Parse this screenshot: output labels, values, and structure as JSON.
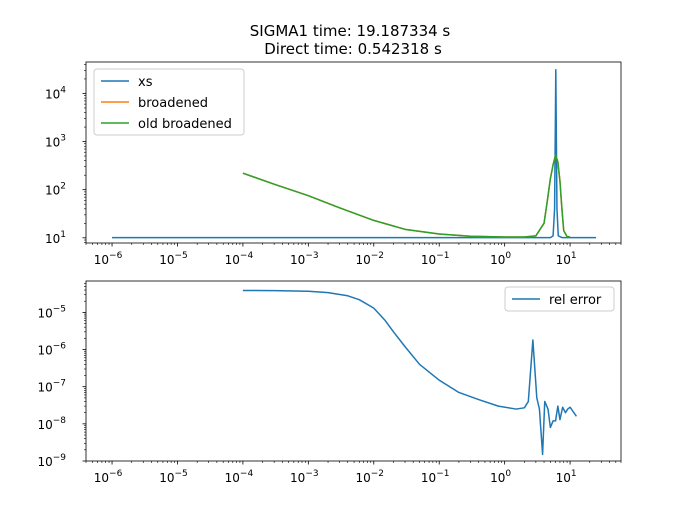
{
  "figure": {
    "title_line1": "SIGMA1 time: 19.187334 s",
    "title_line2": "Direct time: 0.542318 s"
  },
  "chart_data": [
    {
      "type": "line",
      "title": "SIGMA1 time: 19.187334 s\nDirect time: 0.542318 s",
      "xscale": "log",
      "yscale": "log",
      "xlim": [
        4e-07,
        60
      ],
      "ylim": [
        7.8,
        45000
      ],
      "xticks": [
        {
          "value": 1e-06,
          "base": "10",
          "exp": "−6"
        },
        {
          "value": 1e-05,
          "base": "10",
          "exp": "−5"
        },
        {
          "value": 0.0001,
          "base": "10",
          "exp": "−4"
        },
        {
          "value": 0.001,
          "base": "10",
          "exp": "−3"
        },
        {
          "value": 0.01,
          "base": "10",
          "exp": "−2"
        },
        {
          "value": 0.1,
          "base": "10",
          "exp": "−1"
        },
        {
          "value": 1,
          "base": "10",
          "exp": "0"
        },
        {
          "value": 10,
          "base": "10",
          "exp": "1"
        }
      ],
      "yticks": [
        {
          "value": 10,
          "base": "10",
          "exp": "1"
        },
        {
          "value": 100,
          "base": "10",
          "exp": "2"
        },
        {
          "value": 1000,
          "base": "10",
          "exp": "3"
        },
        {
          "value": 10000,
          "base": "10",
          "exp": "4"
        }
      ],
      "legend_position": "upper-left",
      "series": [
        {
          "name": "xs",
          "color": "#1f77b4",
          "points": [
            [
              1e-06,
              10.1
            ],
            [
              5.0,
              10.1
            ],
            [
              5.5,
              11
            ],
            [
              5.8,
              40
            ],
            [
              5.95,
              2000
            ],
            [
              6.05,
              31000
            ],
            [
              6.15,
              2000
            ],
            [
              6.3,
              40
            ],
            [
              6.6,
              11
            ],
            [
              7.5,
              10.1
            ],
            [
              25,
              10.1
            ]
          ]
        },
        {
          "name": "broadened",
          "color": "#ff7f0e",
          "points": [
            [
              0.0001,
              220
            ],
            [
              0.0003,
              130
            ],
            [
              0.001,
              75
            ],
            [
              0.003,
              42
            ],
            [
              0.01,
              23
            ],
            [
              0.03,
              15
            ],
            [
              0.1,
              12
            ],
            [
              0.3,
              10.8
            ],
            [
              1,
              10.4
            ],
            [
              2,
              10.4
            ],
            [
              3,
              11
            ],
            [
              4,
              20
            ],
            [
              4.5,
              60
            ],
            [
              5,
              170
            ],
            [
              5.5,
              330
            ],
            [
              6,
              520
            ],
            [
              6.5,
              380
            ],
            [
              7,
              150
            ],
            [
              7.5,
              40
            ],
            [
              8,
              14
            ],
            [
              9,
              10.6
            ],
            [
              10,
              10.4
            ]
          ]
        },
        {
          "name": "old broadened",
          "color": "#2ca02c",
          "points": [
            [
              0.0001,
              220
            ],
            [
              0.0003,
              130
            ],
            [
              0.001,
              75
            ],
            [
              0.003,
              42
            ],
            [
              0.01,
              23
            ],
            [
              0.03,
              15
            ],
            [
              0.1,
              12
            ],
            [
              0.3,
              10.8
            ],
            [
              1,
              10.4
            ],
            [
              2,
              10.4
            ],
            [
              3,
              11
            ],
            [
              4,
              20
            ],
            [
              4.5,
              60
            ],
            [
              5,
              170
            ],
            [
              5.5,
              330
            ],
            [
              6,
              520
            ],
            [
              6.5,
              380
            ],
            [
              7,
              150
            ],
            [
              7.5,
              40
            ],
            [
              8,
              14
            ],
            [
              9,
              10.6
            ],
            [
              10,
              10.4
            ]
          ]
        }
      ]
    },
    {
      "type": "line",
      "title": "",
      "xscale": "log",
      "yscale": "log",
      "xlim": [
        4e-07,
        60
      ],
      "ylim": [
        1e-09,
        7e-05
      ],
      "xticks": [
        {
          "value": 1e-06,
          "base": "10",
          "exp": "−6"
        },
        {
          "value": 1e-05,
          "base": "10",
          "exp": "−5"
        },
        {
          "value": 0.0001,
          "base": "10",
          "exp": "−4"
        },
        {
          "value": 0.001,
          "base": "10",
          "exp": "−3"
        },
        {
          "value": 0.01,
          "base": "10",
          "exp": "−2"
        },
        {
          "value": 0.1,
          "base": "10",
          "exp": "−1"
        },
        {
          "value": 1,
          "base": "10",
          "exp": "0"
        },
        {
          "value": 10,
          "base": "10",
          "exp": "1"
        }
      ],
      "yticks": [
        {
          "value": 1e-09,
          "base": "10",
          "exp": "−9"
        },
        {
          "value": 1e-08,
          "base": "10",
          "exp": "−8"
        },
        {
          "value": 1e-07,
          "base": "10",
          "exp": "−7"
        },
        {
          "value": 1e-06,
          "base": "10",
          "exp": "−6"
        },
        {
          "value": 1e-05,
          "base": "10",
          "exp": "−5"
        }
      ],
      "legend_position": "upper-right",
      "series": [
        {
          "name": "rel error",
          "color": "#1f77b4",
          "points": [
            [
              0.0001,
              3.9e-05
            ],
            [
              0.0003,
              3.85e-05
            ],
            [
              0.001,
              3.7e-05
            ],
            [
              0.002,
              3.4e-05
            ],
            [
              0.004,
              2.8e-05
            ],
            [
              0.006,
              2.2e-05
            ],
            [
              0.01,
              1.3e-05
            ],
            [
              0.015,
              6e-06
            ],
            [
              0.02,
              3e-06
            ],
            [
              0.03,
              1.2e-06
            ],
            [
              0.05,
              4e-07
            ],
            [
              0.1,
              1.5e-07
            ],
            [
              0.2,
              7e-08
            ],
            [
              0.4,
              4.5e-08
            ],
            [
              0.8,
              3e-08
            ],
            [
              1.5,
              2.5e-08
            ],
            [
              2,
              2.7e-08
            ],
            [
              2.3,
              4e-08
            ],
            [
              2.7,
              1.8e-06
            ],
            [
              3.1,
              5e-08
            ],
            [
              3.4,
              2.5e-08
            ],
            [
              3.8,
              1.5e-09
            ],
            [
              4.1,
              4e-08
            ],
            [
              4.6,
              2.5e-08
            ],
            [
              5.0,
              8e-09
            ],
            [
              5.5,
              1.2e-08
            ],
            [
              6.0,
              1.2e-08
            ],
            [
              6.5,
              3e-08
            ],
            [
              7.0,
              1.3e-08
            ],
            [
              7.7,
              2.8e-08
            ],
            [
              8.5,
              2e-08
            ],
            [
              9.2,
              2.5e-08
            ],
            [
              10,
              2.8e-08
            ],
            [
              11,
              2.2e-08
            ],
            [
              12.5,
              1.6e-08
            ]
          ]
        }
      ]
    }
  ]
}
